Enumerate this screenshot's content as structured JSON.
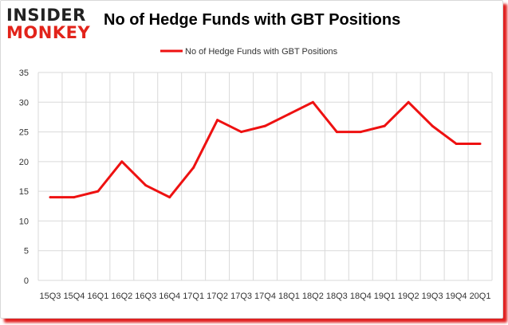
{
  "logo": {
    "line1": "INSIDER",
    "line2": "MONKEY"
  },
  "colors": {
    "series": "#ee1111",
    "grid": "#d9d9d9",
    "axis_text": "#333333",
    "frame_shadow": "#e02020"
  },
  "chart_data": {
    "type": "line",
    "title": "No of Hedge Funds with GBT Positions",
    "xlabel": "",
    "ylabel": "",
    "ylim": [
      0,
      35
    ],
    "yticks": [
      0,
      5,
      10,
      15,
      20,
      25,
      30,
      35
    ],
    "grid": true,
    "legend_position": "top-center",
    "categories": [
      "15Q3",
      "15Q4",
      "16Q1",
      "16Q2",
      "16Q3",
      "16Q4",
      "17Q1",
      "17Q2",
      "17Q3",
      "17Q4",
      "18Q1",
      "18Q2",
      "18Q3",
      "18Q4",
      "19Q1",
      "19Q2",
      "19Q3",
      "19Q4",
      "20Q1"
    ],
    "series": [
      {
        "name": "No of Hedge Funds with GBT Positions",
        "values": [
          14,
          14,
          15,
          20,
          16,
          14,
          19,
          27,
          25,
          26,
          28,
          30,
          25,
          25,
          26,
          30,
          26,
          23,
          23
        ]
      }
    ]
  }
}
